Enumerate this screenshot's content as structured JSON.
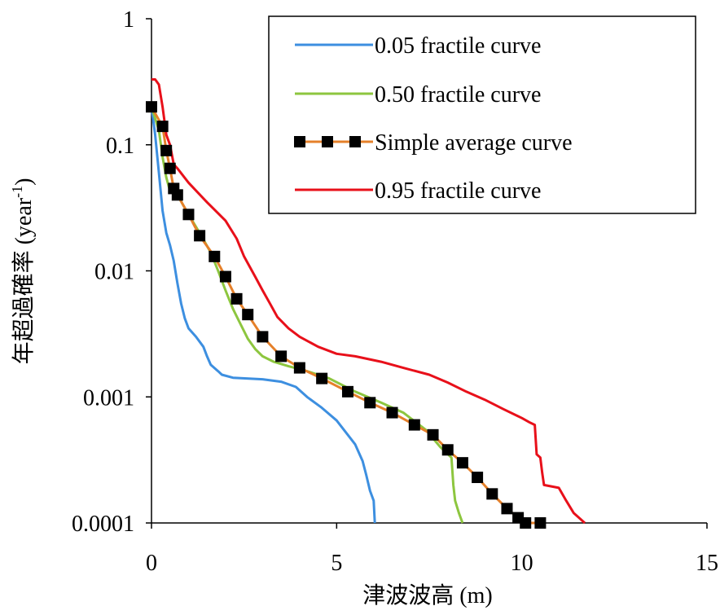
{
  "chart_data": {
    "type": "line",
    "xlabel": "津波波高 (m)",
    "ylabel_main": "年超過確率 (year",
    "ylabel_sup": "-1",
    "ylabel_close": ")",
    "xlim": [
      0,
      15
    ],
    "ylim": [
      0.0001,
      1
    ],
    "yscale": "log",
    "x_ticks": [
      0,
      5,
      10,
      15
    ],
    "x_tick_labels": [
      "0",
      "5",
      "10",
      "15"
    ],
    "y_ticks": [
      1,
      0.1,
      0.01,
      0.001,
      0.0001
    ],
    "y_tick_labels": [
      "1",
      "0.1",
      "0.01",
      "0.001",
      "0.0001"
    ],
    "grid": false,
    "legend_position": "top-right",
    "series": [
      {
        "name": "0.05 fractile curve",
        "color": "#3D8FE0",
        "style": "line",
        "points": [
          [
            0.0,
            0.2
          ],
          [
            0.1,
            0.12
          ],
          [
            0.2,
            0.06
          ],
          [
            0.3,
            0.03
          ],
          [
            0.4,
            0.02
          ],
          [
            0.5,
            0.016
          ],
          [
            0.6,
            0.012
          ],
          [
            0.7,
            0.008
          ],
          [
            0.8,
            0.0055
          ],
          [
            0.9,
            0.0042
          ],
          [
            1.0,
            0.0035
          ],
          [
            1.2,
            0.003
          ],
          [
            1.4,
            0.0025
          ],
          [
            1.5,
            0.0021
          ],
          [
            1.6,
            0.0018
          ],
          [
            1.8,
            0.0016
          ],
          [
            1.9,
            0.0015
          ],
          [
            2.2,
            0.00142
          ],
          [
            3.0,
            0.00138
          ],
          [
            3.5,
            0.00132
          ],
          [
            3.9,
            0.0012
          ],
          [
            4.2,
            0.001
          ],
          [
            4.6,
            0.00082
          ],
          [
            5.0,
            0.00065
          ],
          [
            5.3,
            0.0005
          ],
          [
            5.5,
            0.00042
          ],
          [
            5.7,
            0.00031
          ],
          [
            5.8,
            0.00024
          ],
          [
            5.9,
            0.00018
          ],
          [
            6.0,
            0.00015
          ],
          [
            6.03,
            0.0001
          ]
        ]
      },
      {
        "name": "0.50 fractile curve",
        "color": "#8DC63F",
        "style": "line",
        "points": [
          [
            0.0,
            0.2
          ],
          [
            0.2,
            0.13
          ],
          [
            0.3,
            0.08
          ],
          [
            0.4,
            0.055
          ],
          [
            0.5,
            0.043
          ],
          [
            0.7,
            0.04
          ],
          [
            1.0,
            0.028
          ],
          [
            1.3,
            0.02
          ],
          [
            1.6,
            0.014
          ],
          [
            1.8,
            0.01
          ],
          [
            2.0,
            0.007
          ],
          [
            2.2,
            0.005
          ],
          [
            2.4,
            0.0038
          ],
          [
            2.6,
            0.0029
          ],
          [
            2.8,
            0.0024
          ],
          [
            3.0,
            0.0021
          ],
          [
            3.3,
            0.0019
          ],
          [
            3.7,
            0.00175
          ],
          [
            4.2,
            0.0016
          ],
          [
            4.8,
            0.0014
          ],
          [
            5.5,
            0.0011
          ],
          [
            6.2,
            0.0009
          ],
          [
            6.8,
            0.00075
          ],
          [
            7.4,
            0.00055
          ],
          [
            7.8,
            0.0004
          ],
          [
            8.1,
            0.00033
          ],
          [
            8.15,
            0.0002
          ],
          [
            8.2,
            0.00015
          ],
          [
            8.3,
            0.00012
          ],
          [
            8.4,
            0.0001
          ]
        ]
      },
      {
        "name": "Simple average curve",
        "color": "#E5802A",
        "marker_color": "#000000",
        "style": "line-marker",
        "points": [
          [
            0.0,
            0.2
          ],
          [
            0.3,
            0.14
          ],
          [
            0.4,
            0.09
          ],
          [
            0.5,
            0.065
          ],
          [
            0.6,
            0.045
          ],
          [
            0.7,
            0.04
          ],
          [
            1.0,
            0.028
          ],
          [
            1.3,
            0.019
          ],
          [
            1.7,
            0.013
          ],
          [
            2.0,
            0.009
          ],
          [
            2.3,
            0.006
          ],
          [
            2.6,
            0.0045
          ],
          [
            3.0,
            0.003
          ],
          [
            3.5,
            0.0021
          ],
          [
            4.0,
            0.0017
          ],
          [
            4.6,
            0.0014
          ],
          [
            5.3,
            0.0011
          ],
          [
            5.9,
            0.0009
          ],
          [
            6.5,
            0.00075
          ],
          [
            7.1,
            0.0006
          ],
          [
            7.6,
            0.0005
          ],
          [
            8.0,
            0.00038
          ],
          [
            8.4,
            0.0003
          ],
          [
            8.8,
            0.00023
          ],
          [
            9.2,
            0.00017
          ],
          [
            9.6,
            0.00013
          ],
          [
            9.9,
            0.00011
          ],
          [
            10.1,
            0.0001
          ],
          [
            10.5,
            0.0001
          ]
        ]
      },
      {
        "name": "0.95 fractile curve",
        "color": "#E8101A",
        "style": "line",
        "points": [
          [
            0.0,
            0.33
          ],
          [
            0.1,
            0.33
          ],
          [
            0.2,
            0.3
          ],
          [
            0.3,
            0.2
          ],
          [
            0.4,
            0.12
          ],
          [
            0.5,
            0.1
          ],
          [
            0.6,
            0.07
          ],
          [
            0.7,
            0.065
          ],
          [
            1.0,
            0.05
          ],
          [
            1.5,
            0.035
          ],
          [
            2.0,
            0.025
          ],
          [
            2.3,
            0.018
          ],
          [
            2.5,
            0.013
          ],
          [
            2.8,
            0.009
          ],
          [
            3.0,
            0.007
          ],
          [
            3.2,
            0.0055
          ],
          [
            3.4,
            0.0043
          ],
          [
            3.7,
            0.0035
          ],
          [
            4.0,
            0.003
          ],
          [
            4.5,
            0.0025
          ],
          [
            5.0,
            0.0022
          ],
          [
            5.5,
            0.0021
          ],
          [
            6.2,
            0.0019
          ],
          [
            6.8,
            0.0017
          ],
          [
            7.5,
            0.0015
          ],
          [
            8.0,
            0.0013
          ],
          [
            8.5,
            0.0011
          ],
          [
            9.0,
            0.00095
          ],
          [
            9.5,
            0.0008
          ],
          [
            10.0,
            0.00068
          ],
          [
            10.2,
            0.00063
          ],
          [
            10.35,
            0.0006
          ],
          [
            10.4,
            0.00035
          ],
          [
            10.5,
            0.00033
          ],
          [
            10.55,
            0.00025
          ],
          [
            10.6,
            0.0002
          ],
          [
            11.0,
            0.00019
          ],
          [
            11.2,
            0.00015
          ],
          [
            11.4,
            0.00012
          ],
          [
            11.7,
            0.0001
          ]
        ]
      }
    ]
  }
}
